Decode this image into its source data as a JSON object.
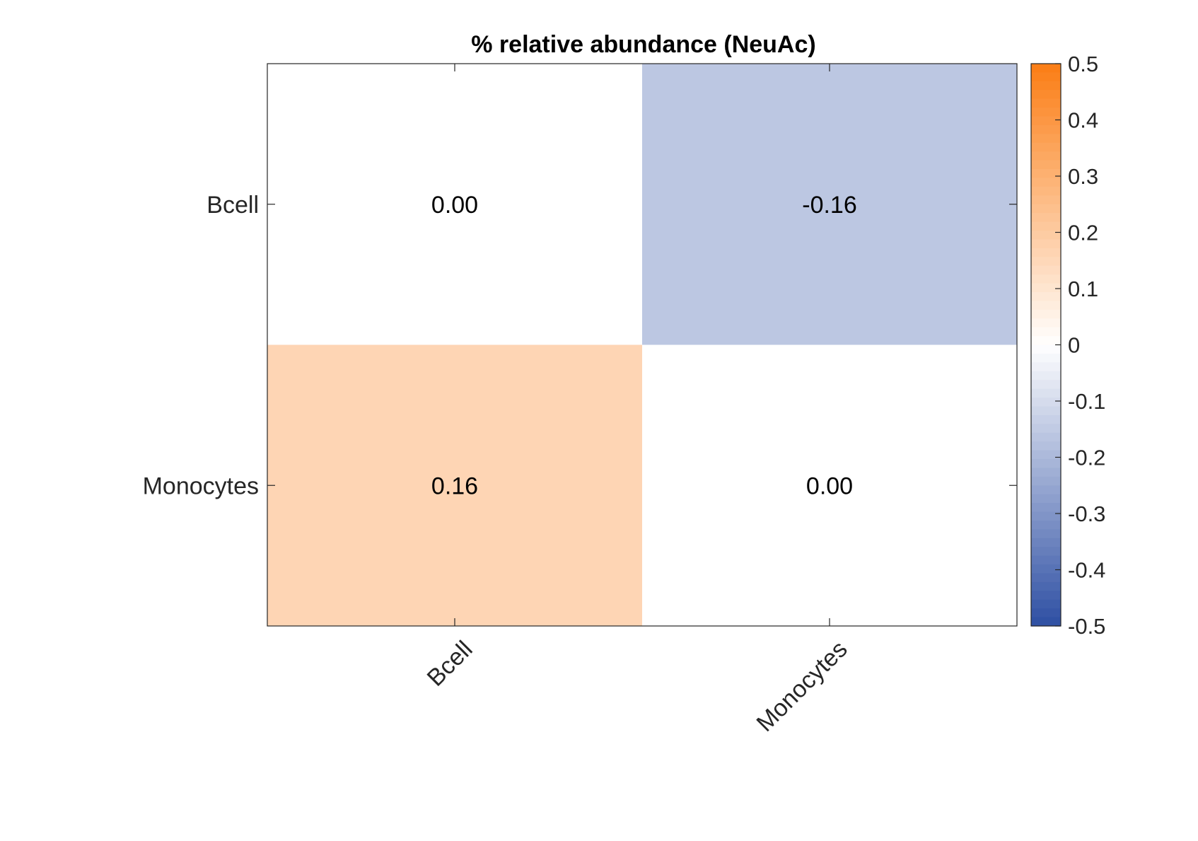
{
  "chart_data": {
    "type": "heatmap",
    "title": "% relative abundance (NeuAc)",
    "row_labels": [
      "Bcell",
      "Monocytes"
    ],
    "col_labels": [
      "Bcell",
      "Monocytes"
    ],
    "values": [
      [
        0.0,
        -0.16
      ],
      [
        0.16,
        0.0
      ]
    ],
    "value_labels": [
      [
        "0.00",
        "-0.16"
      ],
      [
        "0.16",
        "0.00"
      ]
    ],
    "colorbar": {
      "min": -0.5,
      "max": 0.5,
      "ticks": [
        0.5,
        0.4,
        0.3,
        0.2,
        0.1,
        0,
        -0.1,
        -0.2,
        -0.3,
        -0.4,
        -0.5
      ],
      "tick_labels": [
        "0.5",
        "0.4",
        "0.3",
        "0.2",
        "0.1",
        "0",
        "-0.1",
        "-0.2",
        "-0.3",
        "-0.4",
        "-0.5"
      ],
      "colors": {
        "low": "#2e4fa3",
        "mid": "#ffffff",
        "high": "#fb7d14"
      }
    }
  }
}
